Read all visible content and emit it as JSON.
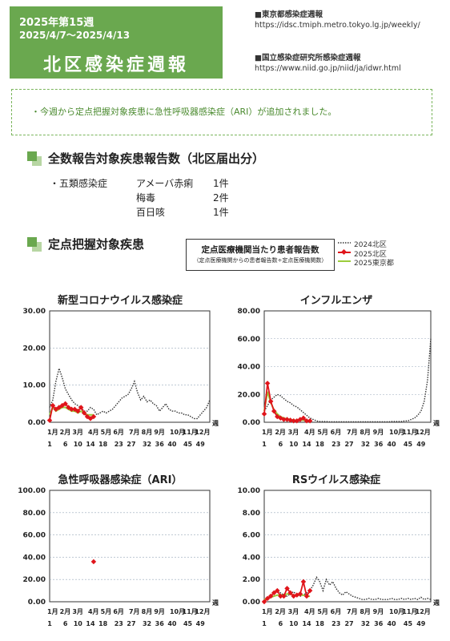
{
  "header": {
    "week": "2025年第15週",
    "dates": "2025/4/7～2025/4/13",
    "title": "北区感染症週報"
  },
  "sources": [
    {
      "title": "■東京都感染症週報",
      "url": "https://idsc.tmiph.metro.tokyo.lg.jp/weekly/"
    },
    {
      "title": "■国立感染症研究所感染症週報",
      "url": "https://www.niid.go.jp/niid/ja/idwr.html"
    }
  ],
  "notice": "・今週から定点把握対象疾患に急性呼吸器感染症（ARI）が追加されました。",
  "section1": {
    "title": "全数報告対象疾患報告数（北区届出分）",
    "category": "・五類感染症",
    "rows": [
      {
        "disease": "アメーバ赤痢",
        "count": "1件"
      },
      {
        "disease": "梅毒",
        "count": "2件"
      },
      {
        "disease": "百日咳",
        "count": "1件"
      }
    ]
  },
  "section2": {
    "title": "定点把握対象疾患"
  },
  "legend": {
    "title": "定点医療機関当たり患者報告数",
    "subtitle": "（定点医療機関からの患者報告数÷定点医療機関数）",
    "series_2024": "2024北区",
    "series_2025": "2025北区",
    "series_tokyo": "2025東京都"
  },
  "colors": {
    "brand_green": "#6aa84f",
    "kita2025": "#e0151b",
    "tokyo2025": "#9ccc3c",
    "kita2024": "#333333"
  },
  "axis": {
    "month_labels": [
      "1月",
      "2月",
      "3月",
      "4月",
      "5月",
      "6月",
      "7月",
      "8月",
      "9月",
      "10月",
      "11月",
      "12月"
    ],
    "week_labels": [
      "1",
      "6",
      "10",
      "14",
      "18",
      "23",
      "27",
      "32",
      "36",
      "40",
      "45",
      "49"
    ],
    "week_unit": "週"
  },
  "chart_data": [
    {
      "type": "line",
      "title": "新型コロナウイルス感染症",
      "ylim": [
        0,
        30
      ],
      "yticks": [
        "0.00",
        "10.00",
        "20.00",
        "30.00"
      ],
      "grid": true,
      "series": [
        {
          "name": "2024北区",
          "x": [
            1,
            2,
            3,
            4,
            5,
            6,
            7,
            8,
            9,
            10,
            11,
            12,
            13,
            14,
            15,
            16,
            17,
            18,
            19,
            20,
            21,
            22,
            23,
            24,
            25,
            26,
            27,
            28,
            29,
            30,
            31,
            32,
            33,
            34,
            35,
            36,
            37,
            38,
            39,
            40,
            41,
            42,
            43,
            44,
            45,
            46,
            47,
            48,
            49,
            50,
            51,
            52
          ],
          "values": [
            4,
            6,
            11,
            14.5,
            12,
            9,
            7.5,
            6,
            5,
            4.5,
            4,
            3,
            3,
            4,
            3.5,
            2,
            2.5,
            3,
            2.5,
            3,
            3.5,
            4.5,
            5.5,
            6.5,
            7,
            7.5,
            9,
            11,
            8,
            6,
            7,
            5.5,
            6,
            5,
            4.5,
            3,
            4,
            5,
            3.5,
            3,
            3,
            2.5,
            2.5,
            2,
            2,
            1.5,
            1,
            1,
            2,
            3,
            4,
            6
          ]
        },
        {
          "name": "2025北区",
          "x": [
            1,
            2,
            3,
            4,
            5,
            6,
            7,
            8,
            9,
            10,
            11,
            12,
            13,
            14,
            15
          ],
          "values": [
            0.5,
            4.5,
            3.5,
            4,
            4.5,
            5,
            4,
            3.5,
            3.5,
            3,
            4,
            2.5,
            1.5,
            1,
            1.5
          ]
        },
        {
          "name": "2025東京都",
          "x": [
            1,
            2,
            3,
            4,
            5,
            6,
            7,
            8,
            9,
            10,
            11,
            12,
            13,
            14,
            15
          ],
          "values": [
            2,
            4,
            3,
            3.5,
            4,
            4,
            3.5,
            3,
            3,
            2.5,
            3,
            2.5,
            2,
            2,
            2
          ]
        }
      ]
    },
    {
      "type": "line",
      "title": "インフルエンザ",
      "ylim": [
        0,
        80
      ],
      "yticks": [
        "0.00",
        "20.00",
        "40.00",
        "60.00",
        "80.00"
      ],
      "grid": true,
      "series": [
        {
          "name": "2024北区",
          "x": [
            1,
            2,
            3,
            4,
            5,
            6,
            7,
            8,
            9,
            10,
            11,
            12,
            13,
            14,
            15,
            16,
            17,
            18,
            19,
            20,
            21,
            22,
            23,
            24,
            25,
            26,
            27,
            28,
            29,
            30,
            31,
            32,
            33,
            34,
            35,
            36,
            37,
            38,
            39,
            40,
            41,
            42,
            43,
            44,
            45,
            46,
            47,
            48,
            49,
            50,
            51,
            52
          ],
          "values": [
            8,
            12,
            16,
            18,
            20,
            19,
            17,
            15,
            14,
            12,
            11,
            9,
            7,
            5,
            3,
            2,
            1,
            0.5,
            0.5,
            0.5,
            0.3,
            0.3,
            0.3,
            0.3,
            0.3,
            0.3,
            0.3,
            0.3,
            0.3,
            0.3,
            0.3,
            0.3,
            0.3,
            0.3,
            0.3,
            0.3,
            0.3,
            0.3,
            0.3,
            0.5,
            0.5,
            0.5,
            0.5,
            1,
            1,
            2,
            3,
            5,
            8,
            15,
            30,
            60
          ]
        },
        {
          "name": "2025北区",
          "x": [
            1,
            2,
            3,
            4,
            5,
            6,
            7,
            8,
            9,
            10,
            11,
            12,
            13,
            14,
            15
          ],
          "values": [
            6,
            28,
            15,
            8,
            4,
            3,
            2,
            2,
            1.5,
            1,
            1,
            2,
            3,
            1,
            1
          ]
        },
        {
          "name": "2025東京都",
          "x": [
            1,
            2,
            3,
            4,
            5,
            6,
            7,
            8,
            9,
            10,
            11,
            12,
            13,
            14,
            15
          ],
          "values": [
            8,
            22,
            14,
            9,
            6,
            4,
            3,
            2.5,
            2,
            1.5,
            1.5,
            1.5,
            1.5,
            1,
            1
          ]
        }
      ]
    },
    {
      "type": "line",
      "title": "急性呼吸器感染症（ARI）",
      "ylim": [
        0,
        100
      ],
      "yticks": [
        "0.00",
        "20.00",
        "40.00",
        "60.00",
        "80.00",
        "100.00"
      ],
      "grid": true,
      "series": [
        {
          "name": "2025北区",
          "x": [
            15
          ],
          "values": [
            36
          ]
        }
      ]
    },
    {
      "type": "line",
      "title": "RSウイルス感染症",
      "ylim": [
        0,
        10
      ],
      "yticks": [
        "0.00",
        "2.00",
        "4.00",
        "6.00",
        "8.00",
        "10.00"
      ],
      "grid": true,
      "series": [
        {
          "name": "2024北区",
          "x": [
            1,
            2,
            3,
            4,
            5,
            6,
            7,
            8,
            9,
            10,
            11,
            12,
            13,
            14,
            15,
            16,
            17,
            18,
            19,
            20,
            21,
            22,
            23,
            24,
            25,
            26,
            27,
            28,
            29,
            30,
            31,
            32,
            33,
            34,
            35,
            36,
            37,
            38,
            39,
            40,
            41,
            42,
            43,
            44,
            45,
            46,
            47,
            48,
            49,
            50,
            51,
            52
          ],
          "values": [
            0.2,
            0.3,
            0.5,
            0.8,
            1,
            0.8,
            0.6,
            0.5,
            0.7,
            0.9,
            0.6,
            0.5,
            0.6,
            0.8,
            1,
            1.5,
            2.2,
            1.8,
            1,
            2,
            1.5,
            1.8,
            1.2,
            0.8,
            0.6,
            0.9,
            0.7,
            0.5,
            0.4,
            0.3,
            0.2,
            0.2,
            0.3,
            0.2,
            0.2,
            0.3,
            0.2,
            0.2,
            0.2,
            0.3,
            0.2,
            0.2,
            0.3,
            0.2,
            0.3,
            0.2,
            0.3,
            0.2,
            0.4,
            0.2,
            0.3,
            0.2
          ]
        },
        {
          "name": "2025北区",
          "x": [
            1,
            2,
            3,
            4,
            5,
            6,
            7,
            8,
            9,
            10,
            11,
            12,
            13,
            14,
            15
          ],
          "values": [
            0,
            0.3,
            0.5,
            0.8,
            1,
            0.5,
            0.5,
            1.2,
            0.8,
            0.5,
            0.6,
            0.7,
            1.8,
            0.5,
            1
          ]
        },
        {
          "name": "2025東京都",
          "x": [
            1,
            2,
            3,
            4,
            5,
            6,
            7,
            8,
            9,
            10,
            11,
            12,
            13,
            14,
            15
          ],
          "values": [
            0.2,
            0.3,
            0.4,
            0.5,
            0.6,
            0.6,
            0.6,
            0.7,
            0.7,
            0.6,
            0.6,
            0.6,
            0.6,
            0.5,
            0.5
          ]
        }
      ]
    }
  ]
}
